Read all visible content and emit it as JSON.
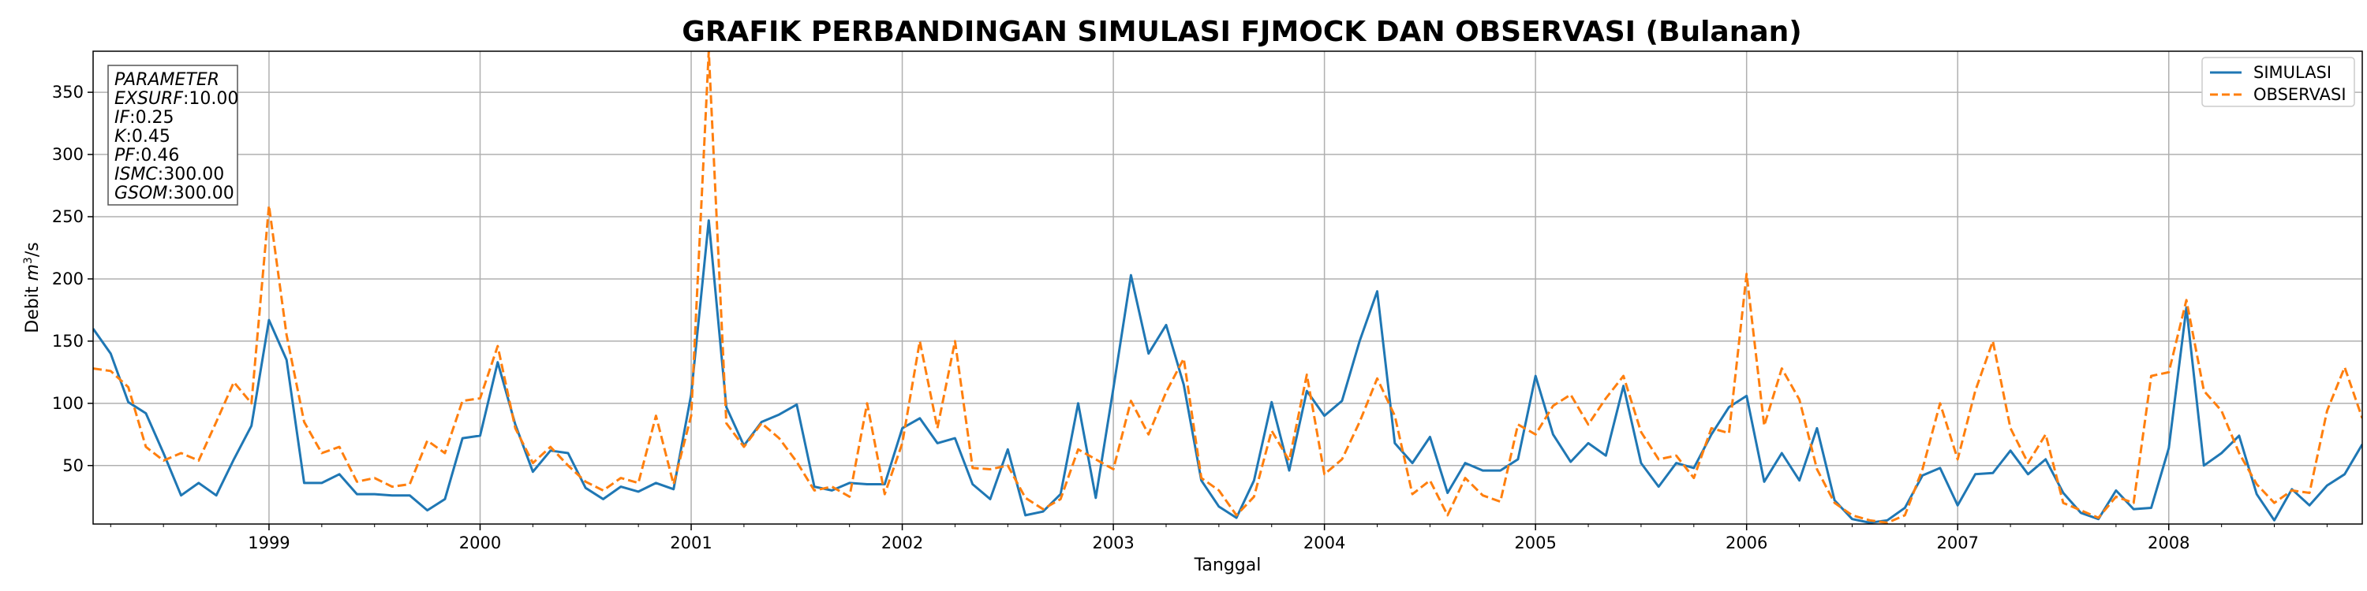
{
  "chart_data": {
    "type": "line",
    "title": "GRAFIK PERBANDINGAN SIMULASI FJMOCK DAN OBSERVASI (Bulanan)",
    "xlabel": "Tanggal",
    "ylabel_prefix": "Debit ",
    "ylabel_unit_m": "m",
    "ylabel_unit_exp": "3",
    "ylabel_unit_rest": "/s",
    "x_start": "1998-03",
    "x_end": "2008-12",
    "xlim": [
      "1998-03",
      "2008-12"
    ],
    "ylim": [
      3,
      383
    ],
    "yticks": [
      50,
      100,
      150,
      200,
      250,
      300,
      350
    ],
    "xticks": [
      {
        "label": "1999",
        "date": "1999-01"
      },
      {
        "label": "2000",
        "date": "2000-01"
      },
      {
        "label": "2001",
        "date": "2001-01"
      },
      {
        "label": "2002",
        "date": "2002-01"
      },
      {
        "label": "2003",
        "date": "2003-01"
      },
      {
        "label": "2004",
        "date": "2004-01"
      },
      {
        "label": "2005",
        "date": "2005-01"
      },
      {
        "label": "2006",
        "date": "2006-01"
      },
      {
        "label": "2007",
        "date": "2007-01"
      },
      {
        "label": "2008",
        "date": "2008-01"
      }
    ],
    "grid": true,
    "legend_position": "top-right",
    "series": [
      {
        "name": "SIMULASI",
        "color": "#1f77b4",
        "style": "solid",
        "values": [
          160,
          140,
          101,
          92,
          60,
          26,
          36,
          26,
          55,
          82,
          167,
          135,
          36,
          36,
          43,
          27,
          27,
          26,
          26,
          14,
          23,
          72,
          74,
          133,
          83,
          45,
          62,
          60,
          32,
          23,
          33,
          29,
          36,
          31,
          107,
          247,
          97,
          66,
          85,
          91,
          99,
          33,
          30,
          36,
          35,
          35,
          80,
          88,
          68,
          72,
          35,
          23,
          63,
          10,
          13,
          27,
          100,
          24,
          112,
          203,
          140,
          163,
          115,
          38,
          17,
          8,
          38,
          101,
          46,
          110,
          90,
          102,
          150,
          190,
          68,
          52,
          73,
          28,
          52,
          46,
          46,
          55,
          122,
          75,
          53,
          68,
          58,
          114,
          52,
          33,
          52,
          48,
          75,
          97,
          106,
          37,
          60,
          38,
          80,
          22,
          7,
          4,
          6,
          16,
          42,
          48,
          18,
          43,
          44,
          62,
          43,
          55,
          28,
          12,
          7,
          30,
          15,
          16,
          64,
          177,
          50,
          60,
          74,
          27,
          6,
          31,
          18,
          34,
          43,
          67
        ]
      },
      {
        "name": "OBSERVASI",
        "color": "#ff7f0e",
        "style": "dashed",
        "values": [
          128,
          126,
          113,
          65,
          54,
          60,
          54,
          85,
          117,
          100,
          259,
          155,
          85,
          60,
          65,
          37,
          40,
          33,
          35,
          70,
          60,
          102,
          104,
          146,
          80,
          52,
          65,
          50,
          37,
          30,
          40,
          36,
          90,
          35,
          90,
          383,
          84,
          65,
          84,
          72,
          53,
          30,
          33,
          25,
          100,
          27,
          68,
          150,
          80,
          150,
          48,
          47,
          50,
          24,
          15,
          23,
          63,
          55,
          47,
          102,
          75,
          109,
          136,
          40,
          30,
          10,
          25,
          78,
          54,
          123,
          43,
          55,
          85,
          120,
          90,
          27,
          38,
          10,
          40,
          26,
          21,
          83,
          75,
          98,
          107,
          83,
          104,
          122,
          77,
          55,
          58,
          40,
          80,
          76,
          204,
          82,
          128,
          103,
          47,
          20,
          10,
          6,
          4,
          10,
          47,
          100,
          55,
          110,
          150,
          80,
          52,
          75,
          20,
          14,
          8,
          25,
          20,
          122,
          125,
          183,
          110,
          94,
          60,
          35,
          20,
          30,
          28,
          94,
          129,
          88
        ]
      }
    ],
    "parameter_box": {
      "heading": "PARAMETER",
      "items": [
        {
          "key": "EXSURF",
          "value": "10.00"
        },
        {
          "key": "IF",
          "value": "0.25"
        },
        {
          "key": "K",
          "value": "0.45"
        },
        {
          "key": "PF",
          "value": "0.46"
        },
        {
          "key": "ISMC",
          "value": "300.00"
        },
        {
          "key": "GSOM",
          "value": "300.00"
        }
      ]
    }
  }
}
